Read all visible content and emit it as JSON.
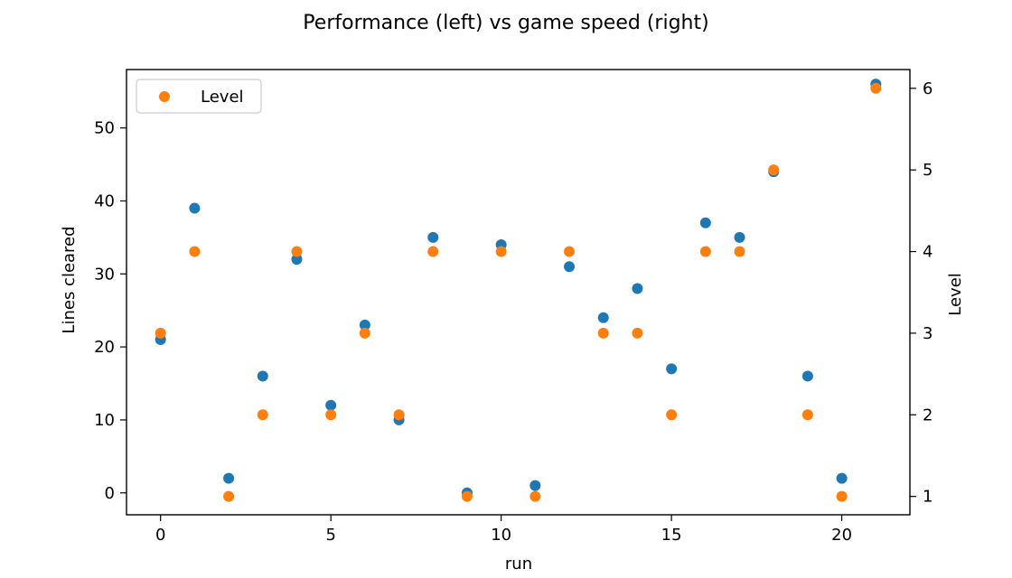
{
  "chart_data": {
    "type": "scatter",
    "title": "Performance (left) vs game speed (right)",
    "xlabel": "run",
    "ylabel_left": "Lines cleared",
    "ylabel_right": "Level",
    "xlim": [
      -1,
      22
    ],
    "ylim_left": [
      -3,
      58
    ],
    "ylim_right": [
      0.775,
      6.23
    ],
    "xticks": [
      0,
      5,
      10,
      15,
      20
    ],
    "yticks_left": [
      0,
      10,
      20,
      30,
      40,
      50
    ],
    "yticks_right": [
      1,
      2,
      3,
      4,
      5,
      6
    ],
    "legend": {
      "placement": "top-left",
      "entries": [
        "Level"
      ]
    },
    "grid": false,
    "series": [
      {
        "axis": "left",
        "color": "#1f77b4",
        "x": [
          0,
          1,
          2,
          3,
          4,
          5,
          6,
          7,
          8,
          9,
          10,
          11,
          12,
          13,
          14,
          15,
          16,
          17,
          18,
          19,
          20,
          21
        ],
        "values": [
          21,
          39,
          2,
          16,
          32,
          12,
          23,
          10,
          35,
          0,
          34,
          1,
          31,
          24,
          28,
          17,
          37,
          35,
          44,
          16,
          2,
          56
        ]
      },
      {
        "name": "Level",
        "axis": "right",
        "color": "#ff7f0e",
        "x": [
          0,
          1,
          2,
          3,
          4,
          5,
          6,
          7,
          8,
          9,
          10,
          11,
          12,
          13,
          14,
          15,
          16,
          17,
          18,
          19,
          20,
          21
        ],
        "values": [
          3,
          4,
          1,
          2,
          4,
          2,
          3,
          2,
          4,
          1,
          4,
          1,
          4,
          3,
          3,
          2,
          4,
          4,
          5,
          2,
          1,
          6
        ]
      }
    ]
  }
}
